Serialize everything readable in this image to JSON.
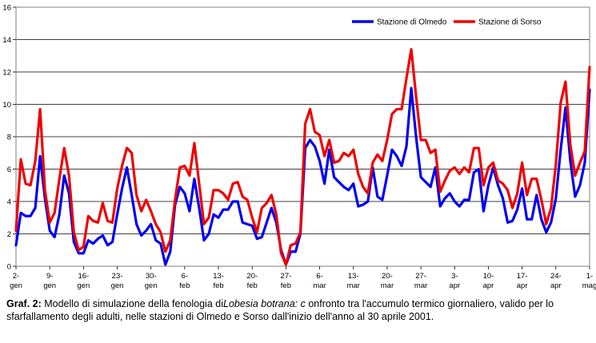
{
  "chart_data": {
    "type": "line",
    "title": "",
    "xlabel": "",
    "ylabel": "",
    "ylim": [
      0,
      16
    ],
    "yticks": [
      0,
      2,
      4,
      6,
      8,
      10,
      12,
      14,
      16
    ],
    "grid": "horizontal",
    "legend_position": "top-right",
    "x_tick_labels": [
      [
        "2-",
        "gen"
      ],
      [
        "9-",
        "gen"
      ],
      [
        "16-",
        "gen"
      ],
      [
        "23-",
        "gen"
      ],
      [
        "30-",
        "gen"
      ],
      [
        "6-",
        "feb"
      ],
      [
        "13-",
        "feb"
      ],
      [
        "20-",
        "feb"
      ],
      [
        "27-",
        "feb"
      ],
      [
        "6-",
        "mar"
      ],
      [
        "13-",
        "mar"
      ],
      [
        "20-",
        "mar"
      ],
      [
        "27-",
        "mar"
      ],
      [
        "3-",
        "apr"
      ],
      [
        "10-",
        "apr"
      ],
      [
        "17-",
        "apr"
      ],
      [
        "24-",
        "apr"
      ],
      [
        "1-",
        "mag"
      ]
    ],
    "x_start": "2001-01-02",
    "x_end": "2001-05-01",
    "series": [
      {
        "name": "Stazione di Olmedo",
        "color": "#0000ee",
        "values": [
          1.3,
          3.3,
          3.1,
          3.1,
          3.6,
          6.8,
          4.2,
          2.2,
          1.8,
          3.2,
          5.6,
          4.5,
          1.5,
          0.8,
          0.8,
          1.6,
          1.4,
          1.7,
          1.9,
          1.3,
          1.5,
          3.2,
          4.8,
          6.1,
          4.4,
          2.6,
          1.9,
          2.2,
          2.6,
          1.6,
          1.4,
          0.1,
          0.9,
          3.8,
          4.9,
          4.5,
          3.4,
          5.4,
          3.6,
          1.6,
          2.0,
          3.2,
          3.0,
          3.5,
          3.5,
          4.0,
          4.0,
          2.7,
          2.6,
          2.5,
          1.7,
          1.8,
          2.7,
          3.6,
          2.7,
          1.0,
          0.1,
          0.9,
          0.9,
          2.0,
          7.3,
          7.8,
          7.4,
          6.5,
          5.1,
          7.2,
          5.5,
          5.2,
          4.9,
          4.7,
          5.1,
          3.7,
          3.8,
          4.0,
          6.1,
          4.3,
          4.1,
          5.6,
          7.2,
          6.8,
          6.2,
          7.4,
          11.0,
          8.0,
          5.5,
          5.2,
          4.9,
          6.1,
          3.7,
          4.2,
          4.5,
          4.0,
          3.7,
          4.1,
          4.1,
          5.8,
          6.0,
          3.4,
          5.0,
          6.1,
          5.0,
          4.2,
          2.7,
          2.8,
          3.5,
          4.8,
          2.9,
          2.9,
          4.4,
          2.9,
          2.1,
          2.7,
          4.2,
          7.2,
          9.8,
          6.5,
          4.3,
          5.0,
          6.4,
          10.9
        ]
      },
      {
        "name": "Stazione di Sorso",
        "color": "#ee0000",
        "values": [
          2.2,
          6.6,
          5.1,
          5.0,
          6.5,
          9.7,
          4.7,
          2.7,
          3.3,
          5.4,
          7.3,
          5.6,
          2.1,
          1.0,
          1.2,
          3.1,
          2.8,
          2.7,
          3.9,
          2.8,
          2.7,
          4.8,
          6.2,
          7.3,
          7.0,
          4.4,
          3.4,
          4.1,
          3.4,
          2.6,
          2.1,
          0.9,
          1.6,
          4.1,
          6.1,
          6.2,
          5.6,
          7.6,
          5.1,
          2.6,
          3.0,
          4.7,
          4.7,
          4.5,
          4.1,
          5.1,
          5.2,
          4.3,
          4.1,
          3.0,
          2.1,
          3.6,
          3.9,
          4.4,
          3.2,
          0.8,
          0.1,
          1.3,
          1.4,
          2.1,
          8.8,
          9.7,
          8.3,
          8.1,
          6.8,
          7.8,
          6.4,
          6.5,
          7.0,
          6.8,
          7.2,
          5.7,
          4.9,
          4.5,
          6.4,
          6.9,
          6.5,
          7.8,
          9.4,
          9.7,
          9.7,
          11.6,
          13.4,
          10.5,
          7.8,
          7.8,
          7.0,
          7.2,
          4.6,
          5.3,
          5.9,
          6.1,
          5.7,
          6.1,
          5.8,
          7.3,
          7.3,
          5.0,
          6.1,
          6.4,
          5.3,
          5.1,
          4.7,
          3.6,
          4.5,
          6.4,
          4.4,
          5.4,
          5.4,
          4.1,
          2.6,
          3.6,
          6.3,
          10.1,
          11.4,
          7.5,
          5.6,
          6.4,
          7.1,
          12.3
        ]
      }
    ]
  },
  "caption": {
    "label": "Graf. 2:",
    "text_before": " Modello di simulazione della fenologia di",
    "species": "Lobesia botrana: c",
    "text_after": "   onfronto tra l'accumulo termico giornaliero, valido per lo sfarfallamento degli adulti, nelle stazioni di Olmedo e Sorso dall'inizio dell'anno al 30 aprile 2001."
  }
}
